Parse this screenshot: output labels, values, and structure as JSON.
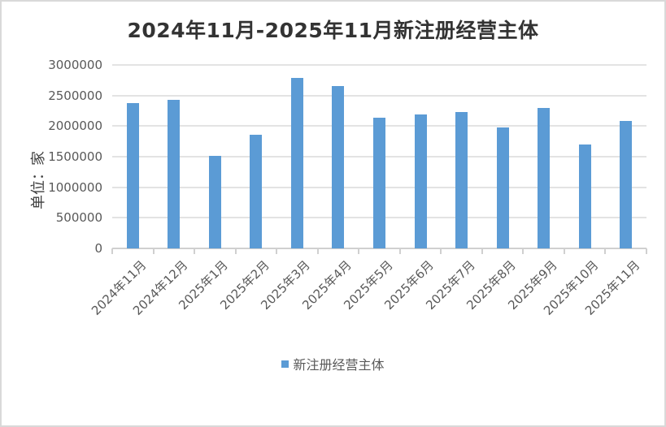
{
  "chart_data": {
    "type": "bar",
    "title": "2024年11月-2025年11月新注册经营主体",
    "xlabel": "",
    "ylabel": "单位：家",
    "ylim": [
      0,
      3000000
    ],
    "yticks": [
      "0",
      "500000",
      "1000000",
      "1500000",
      "2000000",
      "2500000",
      "3000000"
    ],
    "grid": true,
    "legend_position": "bottom",
    "categories": [
      "2024年11月",
      "2024年12月",
      "2025年1月",
      "2025年2月",
      "2025年3月",
      "2025年4月",
      "2025年5月",
      "2025年6月",
      "2025年7月",
      "2025年8月",
      "2025年9月",
      "2025年10月",
      "2025年11月"
    ],
    "series": [
      {
        "name": "新注册经营主体",
        "color": "#5b9bd5",
        "values": [
          2376000,
          2433000,
          1513000,
          1858000,
          2792000,
          2655000,
          2137000,
          2190000,
          2230000,
          1978000,
          2296000,
          1699000,
          2084000
        ]
      }
    ]
  },
  "legend": {
    "label": "新注册经营主体"
  }
}
